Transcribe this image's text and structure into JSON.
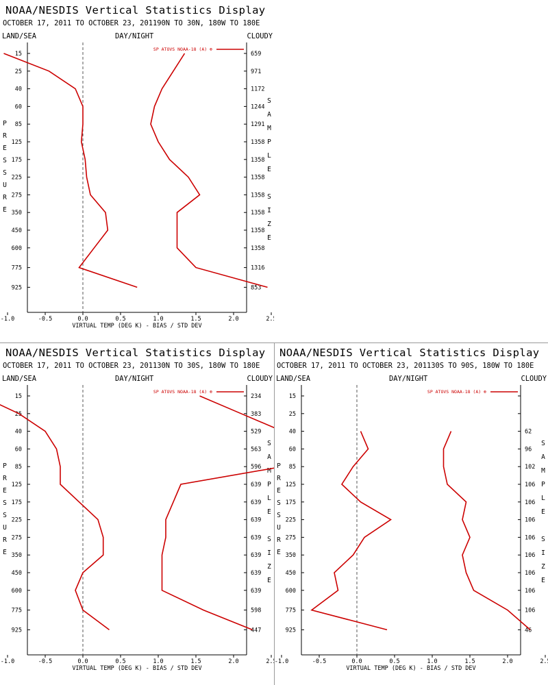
{
  "header": {
    "title": "NOAA/NESDIS Vertical Statistics Display",
    "label_left": "LAND/SEA",
    "label_mid": "DAY/NIGHT",
    "label_right": "CLOUDY",
    "y_side_label": "PRESSURE",
    "y2_side_label": "SAMPLE SIZE",
    "xlabel": "VIRTUAL TEMP (DEG K) - BIAS / STD DEV",
    "legend": "SP ATOVS NOAA-18 (A)",
    "legend_symbol": "⊕"
  },
  "colors": {
    "series": "#cc0000",
    "axis": "#000000",
    "zero_line": "#555555"
  },
  "chart_data": [
    {
      "type": "line",
      "subtitle": "OCTOBER 17, 2011 TO OCTOBER 23, 201190N TO 30N, 180W TO 180E",
      "pressure_levels": [
        "15",
        "25",
        "40",
        "60",
        "85",
        "125",
        "175",
        "225",
        "275",
        "350",
        "450",
        "600",
        "775",
        "925"
      ],
      "x_ticks": [
        "-1.0",
        "-0.5",
        "0.0",
        "0.5",
        "1.0",
        "1.5",
        "2.0",
        "2.5",
        "3.0",
        "3.5",
        "4.0"
      ],
      "xlim": [
        -1.5,
        4.0
      ],
      "sample_size": [
        "659",
        "971",
        "1172",
        "1244",
        "1291",
        "1358",
        "1358",
        "1358",
        "1358",
        "1358",
        "1358",
        "1358",
        "1316",
        "853"
      ],
      "series": [
        {
          "name": "BIAS",
          "values": [
            -1.05,
            -0.45,
            -0.1,
            0.0,
            0.0,
            -0.02,
            0.03,
            0.05,
            0.1,
            0.3,
            0.33,
            0.15,
            -0.05,
            0.72
          ]
        },
        {
          "name": "STD DEV",
          "values": [
            1.35,
            1.2,
            1.05,
            0.95,
            0.9,
            1.0,
            1.15,
            1.4,
            1.55,
            1.25,
            1.25,
            1.25,
            1.5,
            2.45
          ]
        }
      ]
    },
    {
      "type": "line",
      "subtitle": "OCTOBER 17, 2011 TO OCTOBER 23, 201130N TO 30S, 180W TO 180E",
      "pressure_levels": [
        "15",
        "25",
        "40",
        "60",
        "85",
        "125",
        "175",
        "225",
        "275",
        "350",
        "450",
        "600",
        "775",
        "925"
      ],
      "x_ticks": [
        "-1.0",
        "-0.5",
        "0.0",
        "0.5",
        "1.0",
        "1.5",
        "2.0",
        "2.5",
        "3.0",
        "3.5",
        "4.0"
      ],
      "xlim": [
        -1.5,
        4.0
      ],
      "sample_size": [
        "234",
        "383",
        "529",
        "563",
        "596",
        "639",
        "639",
        "639",
        "639",
        "639",
        "639",
        "639",
        "598",
        "447"
      ],
      "series": [
        {
          "name": "BIAS",
          "values": [
            -1.35,
            -0.85,
            -0.5,
            -0.35,
            -0.3,
            -0.3,
            -0.05,
            0.2,
            0.27,
            0.27,
            0.0,
            -0.1,
            0.0,
            0.35
          ]
        },
        {
          "name": "STD DEV",
          "values": [
            1.55,
            2.1,
            2.65,
            2.95,
            2.65,
            1.3,
            1.2,
            1.1,
            1.1,
            1.05,
            1.05,
            1.05,
            1.6,
            2.25
          ]
        }
      ]
    },
    {
      "type": "line",
      "subtitle": "OCTOBER 17, 2011 TO OCTOBER 23, 201130S TO 90S, 180W TO 180E",
      "pressure_levels": [
        "15",
        "25",
        "40",
        "60",
        "85",
        "125",
        "175",
        "225",
        "275",
        "350",
        "450",
        "600",
        "775",
        "925"
      ],
      "x_ticks": [
        "-1.0",
        "-0.5",
        "0.0",
        "0.5",
        "1.0",
        "1.5",
        "2.0",
        "2.5",
        "3.0",
        "3.5",
        "4.0"
      ],
      "xlim": [
        -1.5,
        4.0
      ],
      "sample_size": [
        "",
        "",
        "62",
        "96",
        "102",
        "106",
        "106",
        "106",
        "106",
        "106",
        "106",
        "106",
        "106",
        "46"
      ],
      "series": [
        {
          "name": "BIAS",
          "values": [
            null,
            null,
            0.05,
            0.15,
            -0.05,
            -0.2,
            0.05,
            0.45,
            0.1,
            -0.05,
            -0.3,
            -0.25,
            -0.6,
            0.4
          ]
        },
        {
          "name": "STD DEV",
          "values": [
            null,
            null,
            1.25,
            1.15,
            1.15,
            1.2,
            1.45,
            1.4,
            1.5,
            1.4,
            1.45,
            1.55,
            2.0,
            2.3
          ]
        }
      ]
    }
  ]
}
